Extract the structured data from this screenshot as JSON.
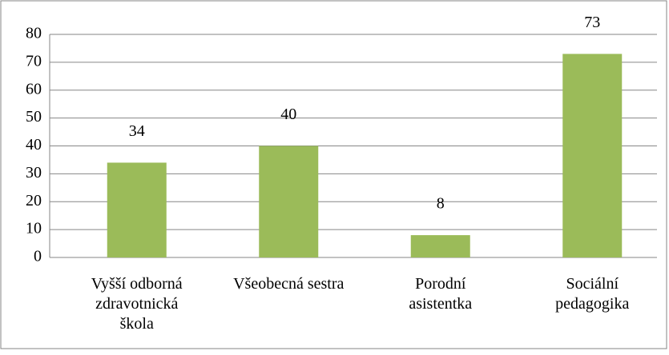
{
  "chart_data": {
    "type": "bar",
    "categories": [
      "Vyšší odborná zdravotnická škola",
      "Všeobecná sestra",
      "Porodní asistentka",
      "Sociální pedagogika"
    ],
    "values": [
      34,
      40,
      8,
      73
    ],
    "color": "#9bbb59",
    "ylim": [
      0,
      80
    ],
    "yticks": [
      0,
      10,
      20,
      30,
      40,
      50,
      60,
      70,
      80
    ],
    "grid": true
  }
}
